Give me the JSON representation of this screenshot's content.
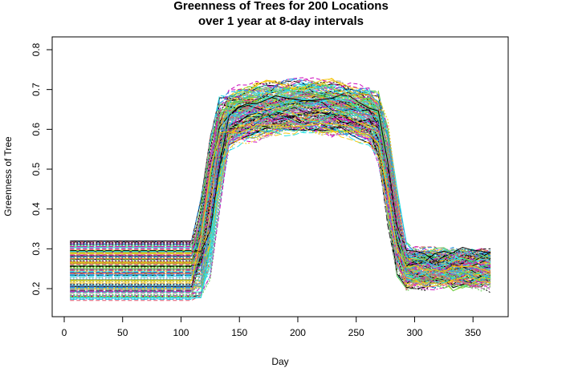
{
  "chart_data": {
    "type": "line",
    "title": "Greenness of Trees for 200 Locations",
    "subtitle": "over 1 year at 8-day intervals",
    "xlabel": "Day",
    "ylabel": "Greenness of Tree",
    "xlim": [
      0,
      365
    ],
    "ylim": [
      0.15,
      0.82
    ],
    "xticks": [
      0,
      50,
      100,
      150,
      200,
      250,
      300,
      350
    ],
    "yticks": [
      0.2,
      0.3,
      0.4,
      0.5,
      0.6,
      0.7,
      0.8
    ],
    "xtick_labels": [
      "0",
      "50",
      "100",
      "150",
      "200",
      "250",
      "300",
      "350"
    ],
    "ytick_labels": [
      "0.2",
      "0.3",
      "0.4",
      "0.5",
      "0.6",
      "0.7",
      "0.8"
    ],
    "grid": false,
    "legend": "none",
    "series_count": 200,
    "palette": [
      "#000000",
      "#DF536B",
      "#61D04F",
      "#2297E6",
      "#28E2E5",
      "#CD0BBC",
      "#F5C710",
      "#9E9E9E"
    ],
    "x": [
      5,
      13,
      21,
      29,
      37,
      45,
      53,
      61,
      69,
      77,
      85,
      93,
      101,
      109,
      117,
      125,
      133,
      141,
      149,
      157,
      165,
      173,
      181,
      189,
      197,
      205,
      213,
      221,
      229,
      237,
      245,
      253,
      261,
      269,
      277,
      285,
      293,
      301,
      309,
      317,
      325,
      333,
      341,
      349,
      357,
      365
    ],
    "series_summary": {
      "winter_start": [
        0.17,
        0.32
      ],
      "spring_rise_days": [
        109,
        141
      ],
      "summer_plateau": [
        0.55,
        0.8
      ],
      "autumn_decline_days": [
        269,
        293
      ],
      "winter_end": [
        0.16,
        0.33
      ]
    }
  }
}
